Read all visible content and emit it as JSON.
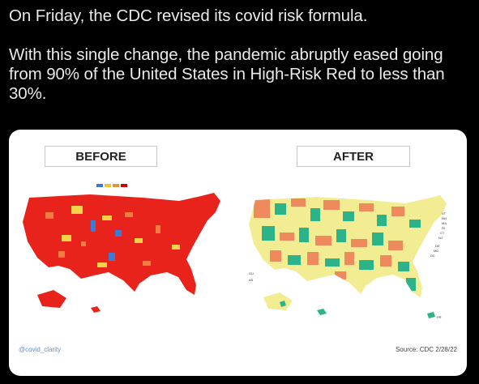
{
  "tweet": {
    "text": "On Friday, the CDC revised its covid risk formula.\n\nWith this single change, the pandemic abruptly eased going from 90% of the United States in High-Risk Red to less than 30%."
  },
  "image": {
    "before_label": "BEFORE",
    "after_label": "AFTER",
    "credit": "@covid_clarity",
    "source": "Source: CDC  2/28/22",
    "legend_colors": [
      "#3c78d8",
      "#f1c232",
      "#e69138",
      "#cc0000"
    ],
    "map_colors": {
      "high": "#e8231b",
      "substantial": "#f07d3f",
      "moderate": "#f6d24a",
      "low": "#3f7ad6",
      "after_low": "#2db38a",
      "after_medium": "#f2ec92",
      "after_high": "#ef8a5c"
    },
    "state_tags": [
      "VT",
      "NH",
      "MA",
      "RI",
      "CT",
      "NJ",
      "DE",
      "MD",
      "DC",
      "GU",
      "AS",
      "PR"
    ]
  }
}
